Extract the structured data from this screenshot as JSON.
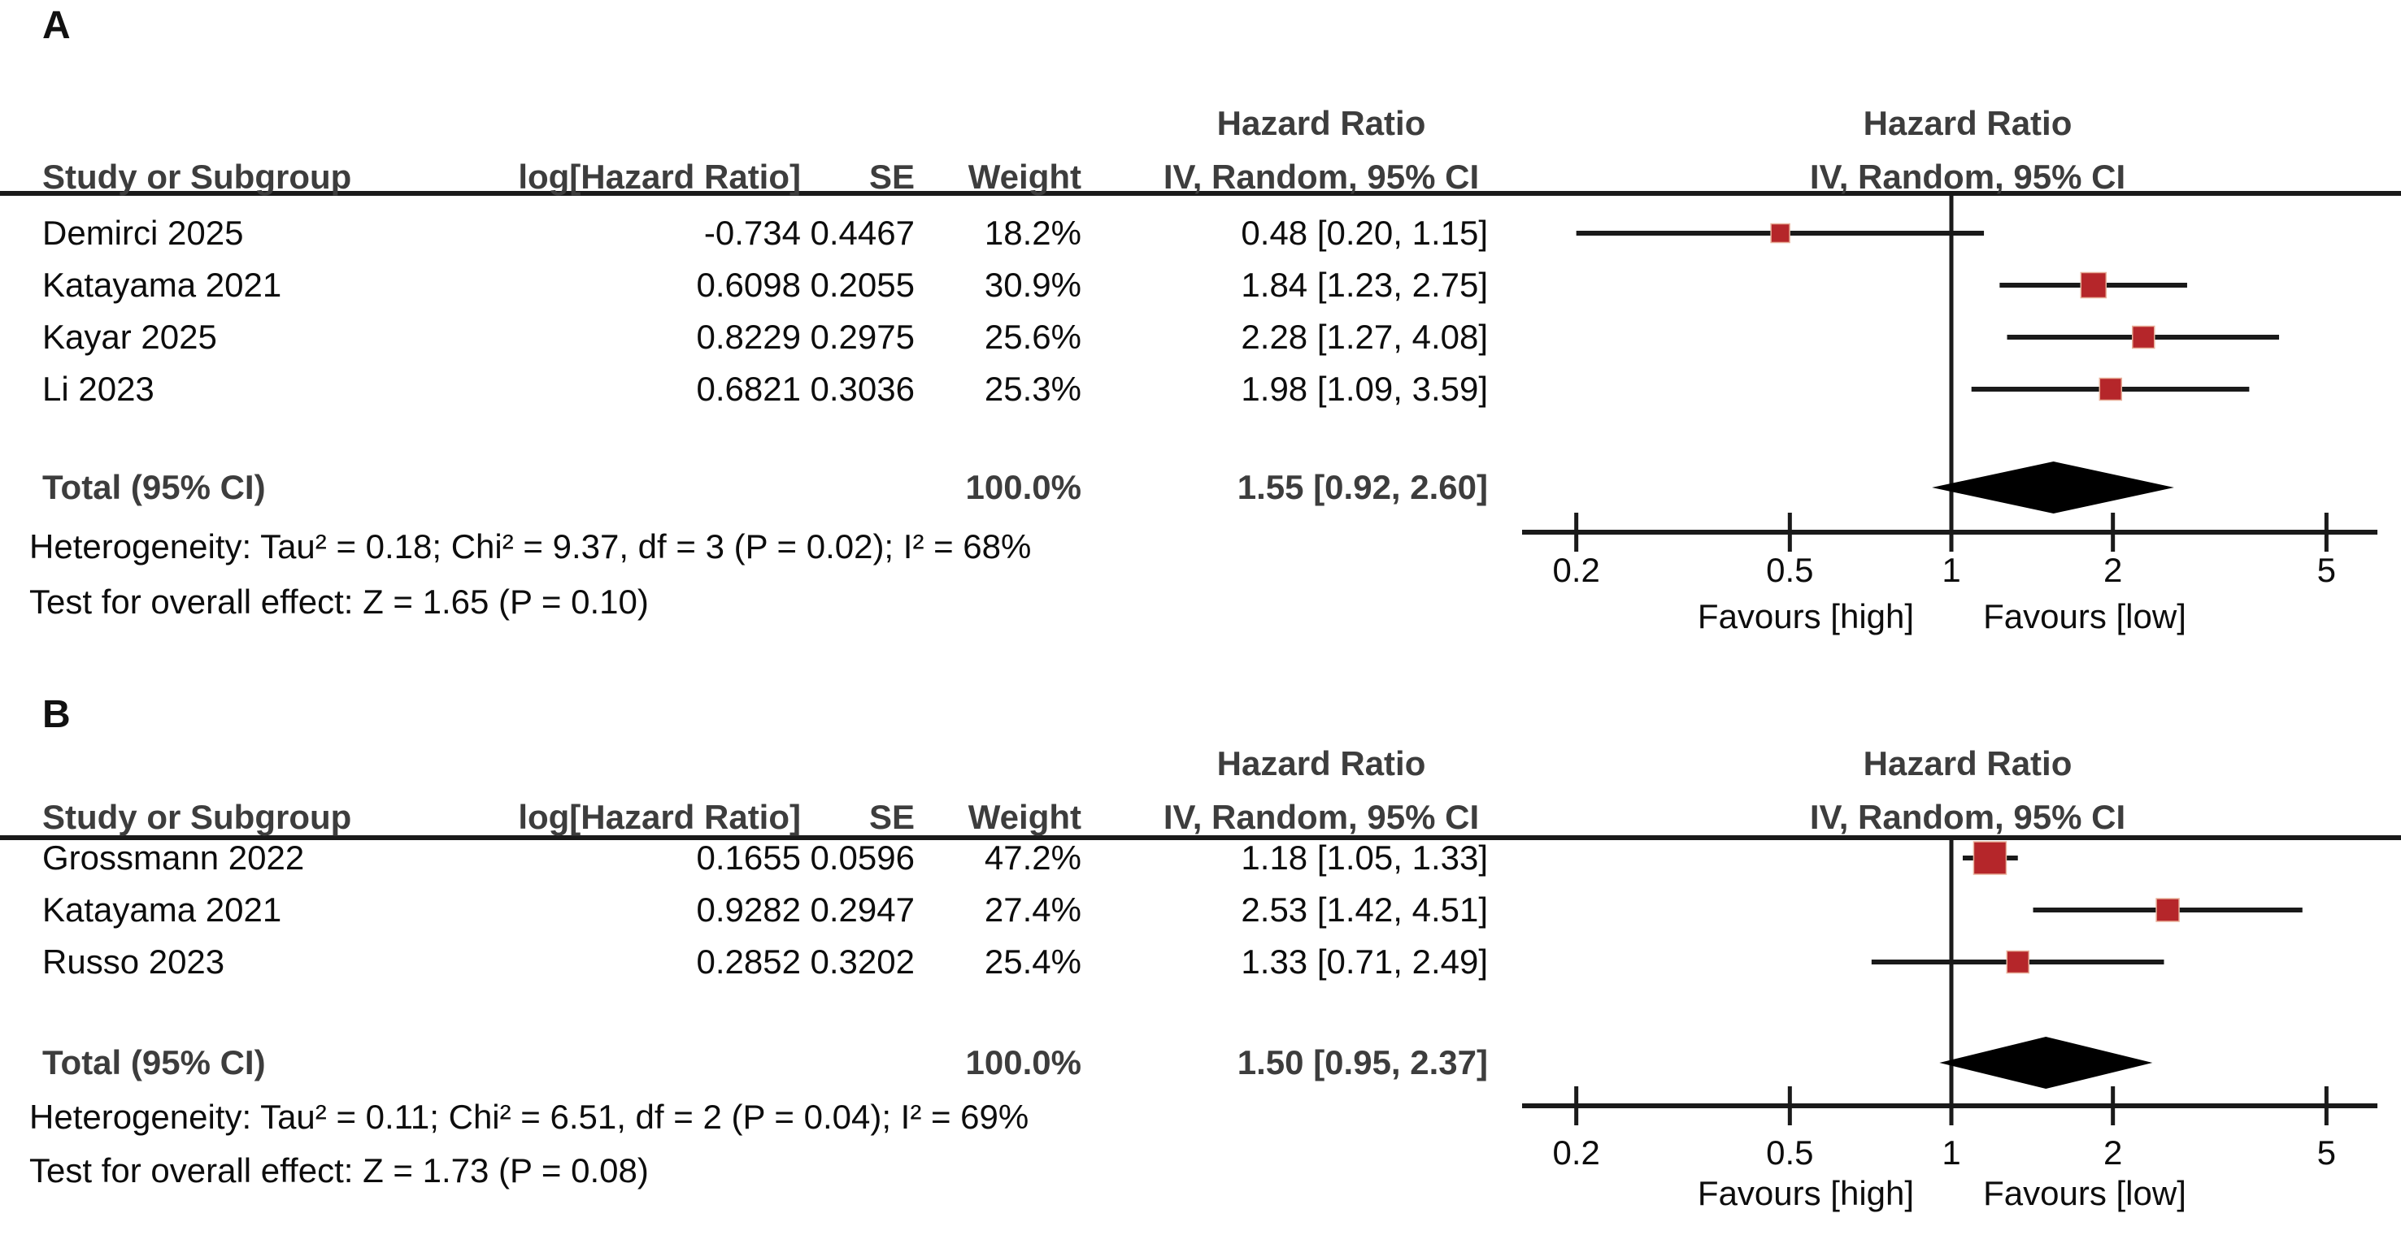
{
  "colors": {
    "marker": "#b5262a",
    "marker_edge": "#e8b09a",
    "diamond": "#000000",
    "line": "#1a1a1a",
    "text": "#0d0d0d",
    "bold_text": "#3d3d3d"
  },
  "chart_data": [
    {
      "type": "scatter",
      "subtype": "forest-plot",
      "panel_label": "A",
      "effect_label": "Hazard Ratio",
      "model_label": "IV, Random, 95% CI",
      "columns": {
        "study": "Study or Subgroup",
        "log_hr": "log[Hazard Ratio]",
        "se": "SE",
        "weight": "Weight"
      },
      "studies": [
        {
          "study": "Demirci 2025",
          "log_hr": "-0.734",
          "se": "0.4467",
          "weight": "18.2%",
          "weight_value": 18.2,
          "hr": 0.48,
          "ci_low": 0.2,
          "ci_high": 1.15,
          "ci_text": "0.48 [0.20, 1.15]"
        },
        {
          "study": "Katayama 2021",
          "log_hr": "0.6098",
          "se": "0.2055",
          "weight": "30.9%",
          "weight_value": 30.9,
          "hr": 1.84,
          "ci_low": 1.23,
          "ci_high": 2.75,
          "ci_text": "1.84 [1.23, 2.75]"
        },
        {
          "study": "Kayar 2025",
          "log_hr": "0.8229",
          "se": "0.2975",
          "weight": "25.6%",
          "weight_value": 25.6,
          "hr": 2.28,
          "ci_low": 1.27,
          "ci_high": 4.08,
          "ci_text": "2.28 [1.27, 4.08]"
        },
        {
          "study": "Li 2023",
          "log_hr": "0.6821",
          "se": "0.3036",
          "weight": "25.3%",
          "weight_value": 25.3,
          "hr": 1.98,
          "ci_low": 1.09,
          "ci_high": 3.59,
          "ci_text": "1.98 [1.09, 3.59]"
        }
      ],
      "total": {
        "label": "Total (95% CI)",
        "weight": "100.0%",
        "hr": 1.55,
        "ci_low": 0.92,
        "ci_high": 2.6,
        "ci_text": "1.55 [0.92, 2.60]"
      },
      "heterogeneity": "Heterogeneity: Tau² = 0.18; Chi² = 9.37, df = 3 (P = 0.02); I² = 68%",
      "overall_effect": "Test for overall effect: Z = 1.65 (P = 0.10)",
      "x_scale": "log10",
      "x_ticks": [
        "0.2",
        "0.5",
        "1",
        "2",
        "5"
      ],
      "x_tick_values": [
        0.2,
        0.5,
        1,
        2,
        5
      ],
      "favours_left": "Favours [high]",
      "favours_right": "Favours [low]"
    },
    {
      "type": "scatter",
      "subtype": "forest-plot",
      "panel_label": "B",
      "effect_label": "Hazard Ratio",
      "model_label": "IV, Random, 95% CI",
      "columns": {
        "study": "Study or Subgroup",
        "log_hr": "log[Hazard Ratio]",
        "se": "SE",
        "weight": "Weight"
      },
      "studies": [
        {
          "study": "Grossmann 2022",
          "log_hr": "0.1655",
          "se": "0.0596",
          "weight": "47.2%",
          "weight_value": 47.2,
          "hr": 1.18,
          "ci_low": 1.05,
          "ci_high": 1.33,
          "ci_text": "1.18 [1.05, 1.33]"
        },
        {
          "study": "Katayama 2021",
          "log_hr": "0.9282",
          "se": "0.2947",
          "weight": "27.4%",
          "weight_value": 27.4,
          "hr": 2.53,
          "ci_low": 1.42,
          "ci_high": 4.51,
          "ci_text": "2.53 [1.42, 4.51]"
        },
        {
          "study": "Russo 2023",
          "log_hr": "0.2852",
          "se": "0.3202",
          "weight": "25.4%",
          "weight_value": 25.4,
          "hr": 1.33,
          "ci_low": 0.71,
          "ci_high": 2.49,
          "ci_text": "1.33 [0.71, 2.49]"
        }
      ],
      "total": {
        "label": "Total (95% CI)",
        "weight": "100.0%",
        "hr": 1.5,
        "ci_low": 0.95,
        "ci_high": 2.37,
        "ci_text": "1.50 [0.95, 2.37]"
      },
      "heterogeneity": "Heterogeneity: Tau² = 0.11; Chi² = 6.51, df = 2 (P = 0.04); I² = 69%",
      "overall_effect": "Test for overall effect: Z = 1.73 (P = 0.08)",
      "x_scale": "log10",
      "x_ticks": [
        "0.2",
        "0.5",
        "1",
        "2",
        "5"
      ],
      "x_tick_values": [
        0.2,
        0.5,
        1,
        2,
        5
      ],
      "favours_left": "Favours [high]",
      "favours_right": "Favours [low]"
    }
  ]
}
